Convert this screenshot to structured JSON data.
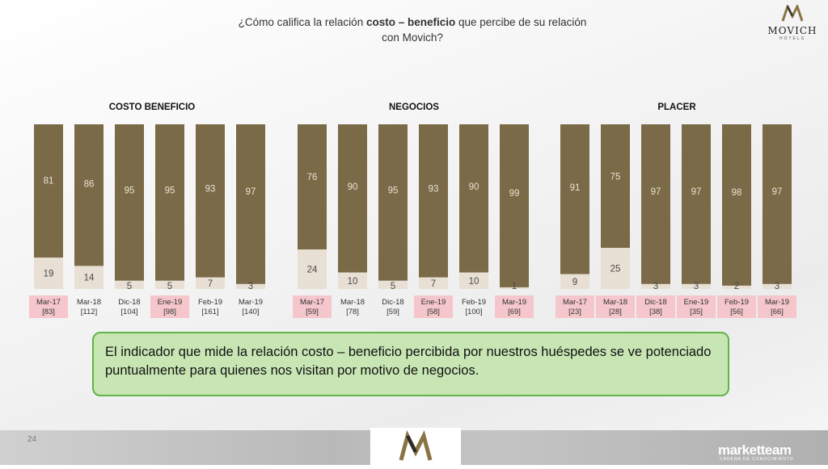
{
  "title": {
    "pre": "¿Cómo califica la relación ",
    "bold": "costo – beneficio",
    "post": " que percibe de su relación",
    "line2": "con Movich?"
  },
  "logo": {
    "name": "MOVICH",
    "sub": "HOTELS"
  },
  "callout_text": "El indicador que mide la relación costo – beneficio percibida por nuestros huéspedes se ve potenciado puntualmente para quienes nos visitan por motivo de negocios.",
  "footer": {
    "page": "24",
    "brand": "marketteam",
    "brand_sub": "CADENA DE CONOCIMIENTO"
  },
  "colors": {
    "top_segment": "#7a6a47",
    "bottom_segment": "#e8e0d4",
    "label_highlight": "#f5c6cb",
    "top_label": "#e9e2d2",
    "bottom_label": "#4a4a4a"
  },
  "chart_data": [
    {
      "type": "bar",
      "stacked": true,
      "title": "COSTO BENEFICIO",
      "categories": [
        "Mar-17",
        "Mar-18",
        "Dic-18",
        "Ene-19",
        "Feb-19",
        "Mar-19"
      ],
      "sample_sizes": [
        "[83]",
        "[112]",
        "[104]",
        "[98]",
        "[161]",
        "[140]"
      ],
      "highlighted": [
        true,
        false,
        false,
        true,
        false,
        false
      ],
      "series": [
        {
          "values": [
            81,
            86,
            95,
            95,
            93,
            97
          ]
        },
        {
          "values": [
            19,
            14,
            5,
            5,
            7,
            3
          ]
        }
      ],
      "ylim": [
        0,
        100
      ]
    },
    {
      "type": "bar",
      "stacked": true,
      "title": "NEGOCIOS",
      "categories": [
        "Mar-17",
        "Mar-18",
        "Dic-18",
        "Ene-19",
        "Feb-19",
        "Mar-19"
      ],
      "sample_sizes": [
        "[59]",
        "[78]",
        "[59]",
        "[58]",
        "[100]",
        "[69]"
      ],
      "highlighted": [
        true,
        false,
        false,
        true,
        false,
        true
      ],
      "series": [
        {
          "values": [
            76,
            90,
            95,
            93,
            90,
            99
          ]
        },
        {
          "values": [
            24,
            10,
            5,
            7,
            10,
            1
          ]
        }
      ],
      "ylim": [
        0,
        100
      ]
    },
    {
      "type": "bar",
      "stacked": true,
      "title": "PLACER",
      "categories": [
        "Mar-17",
        "Mar-18",
        "Dic-18",
        "Ene-19",
        "Feb-19",
        "Mar-19"
      ],
      "sample_sizes": [
        "[23]",
        "[28]",
        "[38]",
        "[35]",
        "[56]",
        "[66]"
      ],
      "highlighted": [
        true,
        true,
        true,
        true,
        true,
        true
      ],
      "series": [
        {
          "values": [
            91,
            75,
            97,
            97,
            98,
            97
          ]
        },
        {
          "values": [
            9,
            25,
            3,
            3,
            2,
            3
          ]
        }
      ],
      "ylim": [
        0,
        100
      ]
    }
  ]
}
